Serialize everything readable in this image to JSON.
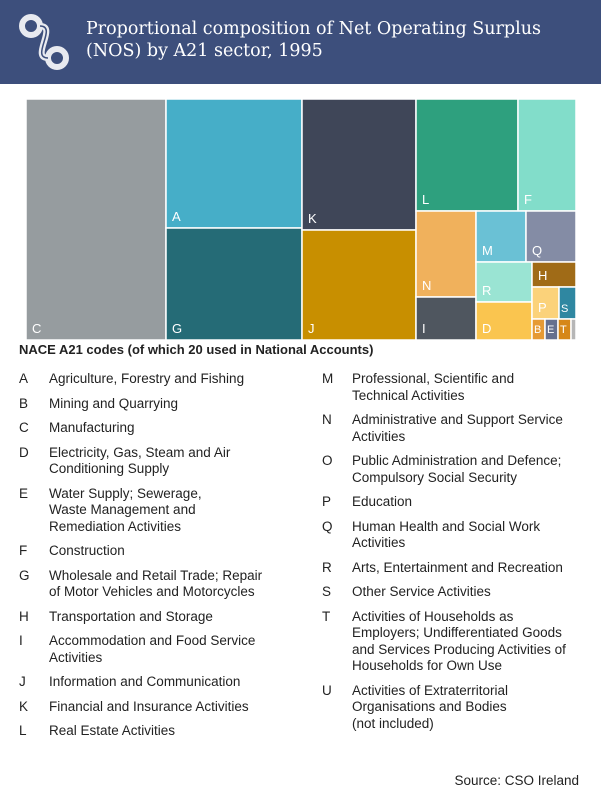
{
  "header": {
    "title": "Proportional composition of Net Operating Surplus (NOS) by A21 sector, 1995",
    "logo_icon": "cso-logo-icon",
    "background": "#3d4f7c"
  },
  "chart_data": {
    "type": "treemap",
    "title": "Proportional composition of Net Operating Surplus (NOS) by A21 sector, 1995",
    "year": "1995",
    "note": "Relative tile areas estimated from the image",
    "tiles": [
      {
        "code": "C",
        "value": 25.4,
        "color": "#969c9f"
      },
      {
        "code": "A",
        "value": 11.9,
        "color": "#46aec8"
      },
      {
        "code": "G",
        "value": 10.4,
        "color": "#256b76"
      },
      {
        "code": "K",
        "value": 10.9,
        "color": "#3f4658"
      },
      {
        "code": "J",
        "value": 10.4,
        "color": "#c88f00"
      },
      {
        "code": "L",
        "value": 7.2,
        "color": "#2ea07e"
      },
      {
        "code": "F",
        "value": 6.3,
        "color": "#82ddca"
      },
      {
        "code": "N",
        "value": 4.6,
        "color": "#f0b15c"
      },
      {
        "code": "I",
        "value": 1.8,
        "color": "#4f565f"
      },
      {
        "code": "M",
        "value": 2.2,
        "color": "#6ac1d5"
      },
      {
        "code": "Q",
        "value": 2.1,
        "color": "#848ca5"
      },
      {
        "code": "R",
        "value": 1.6,
        "color": "#9ae4d3"
      },
      {
        "code": "D",
        "value": 1.6,
        "color": "#fac54f"
      },
      {
        "code": "H",
        "value": 1.1,
        "color": "#a06b17"
      },
      {
        "code": "P",
        "value": 0.6,
        "color": "#fbd27a"
      },
      {
        "code": "S",
        "value": 0.6,
        "color": "#2f87a1"
      },
      {
        "code": "B",
        "value": 0.3,
        "color": "#e69a34"
      },
      {
        "code": "E",
        "value": 0.3,
        "color": "#66708e"
      },
      {
        "code": "T",
        "value": 0.3,
        "color": "#d68718"
      },
      {
        "code": "O",
        "value": 0.1,
        "color": "#b6b6b6"
      }
    ]
  },
  "codes_title": "NACE A21 codes (of which 20 used in National Accounts)",
  "legend_left": [
    {
      "code": "A",
      "desc": "Agriculture, Forestry and Fishing"
    },
    {
      "code": "B",
      "desc": "Mining and Quarrying"
    },
    {
      "code": "C",
      "desc": "Manufacturing"
    },
    {
      "code": "D",
      "desc": "Electricity, Gas, Steam and Air\nConditioning Supply"
    },
    {
      "code": "E",
      "desc": "Water Supply; Sewerage,\nWaste Management and\nRemediation Activities"
    },
    {
      "code": "F",
      "desc": "Construction"
    },
    {
      "code": "G",
      "desc": "Wholesale and Retail Trade; Repair\nof Motor Vehicles and Motorcycles"
    },
    {
      "code": "H",
      "desc": "Transportation and Storage"
    },
    {
      "code": "I",
      "desc": "Accommodation and Food Service\nActivities"
    },
    {
      "code": "J",
      "desc": "Information and Communication"
    },
    {
      "code": "K",
      "desc": "Financial and Insurance Activities"
    },
    {
      "code": "L",
      "desc": "Real Estate Activities"
    }
  ],
  "legend_right": [
    {
      "code": "M",
      "desc": "Professional, Scientific and\nTechnical Activities"
    },
    {
      "code": "N",
      "desc": "Administrative and Support Service\nActivities"
    },
    {
      "code": "O",
      "desc": "Public Administration and Defence;\nCompulsory Social Security"
    },
    {
      "code": "P",
      "desc": "Education"
    },
    {
      "code": "Q",
      "desc": "Human Health and Social Work\nActivities"
    },
    {
      "code": "R",
      "desc": "Arts, Entertainment and Recreation"
    },
    {
      "code": "S",
      "desc": "Other Service Activities"
    },
    {
      "code": "T",
      "desc": "Activities of Households as\nEmployers; Undifferentiated Goods\nand Services Producing Activities of\nHouseholds for Own Use"
    },
    {
      "code": "U",
      "desc": "Activities of Extraterritorial\nOrganisations and Bodies\n(not included)"
    }
  ],
  "source": "Source:  CSO Ireland"
}
